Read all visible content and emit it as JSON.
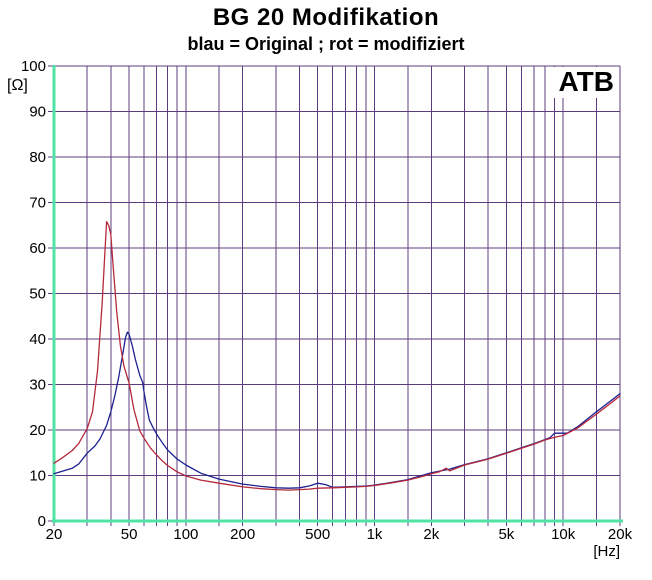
{
  "header": {
    "title": "BG 20 Modifikation",
    "subtitle": "blau = Original ; rot = modifiziert"
  },
  "watermark": {
    "label": "ATB"
  },
  "colors": {
    "grid": "#5c3c80",
    "axis": "#4fe3a4",
    "original_blue": "#1e2190",
    "modified_red": "#b4293b",
    "text": "#000000",
    "background": "#ffffff"
  },
  "chart_data": {
    "type": "line",
    "title": "BG 20 Modifikation",
    "subtitle": "blau = Original ; rot = modifiziert",
    "x_axis": {
      "unit_label": "[Hz]",
      "scale": "log",
      "min": 20,
      "max": 20000,
      "gridlines": [
        20,
        30,
        40,
        50,
        60,
        70,
        80,
        90,
        100,
        150,
        200,
        300,
        400,
        500,
        600,
        700,
        800,
        900,
        1000,
        1500,
        2000,
        3000,
        4000,
        5000,
        6000,
        7000,
        8000,
        9000,
        10000,
        15000,
        20000
      ],
      "tick_labels": [
        {
          "value": 20,
          "label": "20"
        },
        {
          "value": 50,
          "label": "50"
        },
        {
          "value": 100,
          "label": "100"
        },
        {
          "value": 200,
          "label": "200"
        },
        {
          "value": 500,
          "label": "500"
        },
        {
          "value": 1000,
          "label": "1k"
        },
        {
          "value": 2000,
          "label": "2k"
        },
        {
          "value": 5000,
          "label": "5k"
        },
        {
          "value": 10000,
          "label": "10k"
        },
        {
          "value": 20000,
          "label": "20k"
        }
      ]
    },
    "y_axis": {
      "unit_label": "[Ω]",
      "scale": "linear",
      "min": 0,
      "max": 100,
      "tick_step": 10,
      "tick_labels": [
        {
          "value": 100,
          "label": "100"
        },
        {
          "value": 90,
          "label": "90"
        },
        {
          "value": 80,
          "label": "80"
        },
        {
          "value": 70,
          "label": "70"
        },
        {
          "value": 60,
          "label": "60"
        },
        {
          "value": 50,
          "label": "50"
        },
        {
          "value": 40,
          "label": "40"
        },
        {
          "value": 30,
          "label": "30"
        },
        {
          "value": 20,
          "label": "20"
        },
        {
          "value": 10,
          "label": "10"
        },
        {
          "value": 0,
          "label": "0"
        }
      ]
    },
    "legend": {
      "position": "subtitle",
      "entries": [
        "blau = Original",
        "rot = modifiziert"
      ]
    },
    "grid": true,
    "series": [
      {
        "name": "Original",
        "key": "original",
        "color": "#1e2190",
        "points": [
          [
            20,
            10.4
          ],
          [
            22,
            10.9
          ],
          [
            25,
            11.6
          ],
          [
            27,
            12.5
          ],
          [
            30,
            14.9
          ],
          [
            33,
            16.5
          ],
          [
            35,
            18.0
          ],
          [
            38,
            21.0
          ],
          [
            40,
            24.0
          ],
          [
            42,
            27.5
          ],
          [
            44,
            31.5
          ],
          [
            46,
            36.0
          ],
          [
            48,
            40.5
          ],
          [
            49,
            41.5
          ],
          [
            50,
            41.0
          ],
          [
            52,
            38.5
          ],
          [
            54,
            35.5
          ],
          [
            57,
            32.0
          ],
          [
            59,
            30.5
          ],
          [
            60,
            28.4
          ],
          [
            62,
            25.0
          ],
          [
            64,
            22.2
          ],
          [
            67,
            20.5
          ],
          [
            70,
            19.1
          ],
          [
            75,
            17.2
          ],
          [
            80,
            15.6
          ],
          [
            90,
            13.6
          ],
          [
            100,
            12.3
          ],
          [
            120,
            10.5
          ],
          [
            150,
            9.2
          ],
          [
            200,
            8.1
          ],
          [
            250,
            7.6
          ],
          [
            300,
            7.3
          ],
          [
            350,
            7.2
          ],
          [
            400,
            7.3
          ],
          [
            450,
            7.7
          ],
          [
            500,
            8.3
          ],
          [
            550,
            8.0
          ],
          [
            600,
            7.4
          ],
          [
            700,
            7.5
          ],
          [
            800,
            7.6
          ],
          [
            900,
            7.7
          ],
          [
            1000,
            7.9
          ],
          [
            1200,
            8.4
          ],
          [
            1500,
            9.1
          ],
          [
            2000,
            10.6
          ],
          [
            2500,
            11.4
          ],
          [
            3000,
            12.4
          ],
          [
            4000,
            13.7
          ],
          [
            5000,
            15.0
          ],
          [
            6000,
            16.1
          ],
          [
            7000,
            17.0
          ],
          [
            8000,
            17.9
          ],
          [
            8500,
            18.3
          ],
          [
            9000,
            19.3
          ],
          [
            10000,
            19.3
          ],
          [
            10500,
            19.3
          ],
          [
            12000,
            20.8
          ],
          [
            15000,
            24.0
          ],
          [
            18000,
            26.5
          ],
          [
            20000,
            28.0
          ]
        ]
      },
      {
        "name": "modifiziert",
        "key": "modifiziert",
        "color": "#b4293b",
        "points": [
          [
            20,
            12.7
          ],
          [
            22,
            13.8
          ],
          [
            25,
            15.5
          ],
          [
            27,
            17.0
          ],
          [
            30,
            20.3
          ],
          [
            32,
            24.0
          ],
          [
            34,
            33.0
          ],
          [
            36,
            48.0
          ],
          [
            37,
            57.0
          ],
          [
            38,
            65.8
          ],
          [
            39,
            65.0
          ],
          [
            40,
            63.0
          ],
          [
            41,
            57.0
          ],
          [
            43,
            46.0
          ],
          [
            45,
            38.5
          ],
          [
            47,
            34.0
          ],
          [
            50,
            30.3
          ],
          [
            53,
            24.5
          ],
          [
            57,
            19.8
          ],
          [
            60,
            18.2
          ],
          [
            65,
            16.0
          ],
          [
            70,
            14.5
          ],
          [
            75,
            13.2
          ],
          [
            80,
            12.2
          ],
          [
            90,
            10.8
          ],
          [
            100,
            9.9
          ],
          [
            120,
            9.0
          ],
          [
            150,
            8.3
          ],
          [
            200,
            7.5
          ],
          [
            250,
            7.1
          ],
          [
            300,
            6.9
          ],
          [
            350,
            6.8
          ],
          [
            400,
            6.9
          ],
          [
            450,
            7.0
          ],
          [
            500,
            7.2
          ],
          [
            600,
            7.3
          ],
          [
            700,
            7.4
          ],
          [
            800,
            7.5
          ],
          [
            900,
            7.6
          ],
          [
            1000,
            7.8
          ],
          [
            1200,
            8.3
          ],
          [
            1500,
            9.0
          ],
          [
            1800,
            9.8
          ],
          [
            2000,
            10.4
          ],
          [
            2200,
            10.8
          ],
          [
            2400,
            11.6
          ],
          [
            2500,
            11.0
          ],
          [
            3000,
            12.3
          ],
          [
            3500,
            13.0
          ],
          [
            4000,
            13.6
          ],
          [
            5000,
            14.9
          ],
          [
            6000,
            16.0
          ],
          [
            7000,
            16.9
          ],
          [
            8000,
            17.8
          ],
          [
            9000,
            18.4
          ],
          [
            10000,
            18.8
          ],
          [
            12000,
            20.5
          ],
          [
            15000,
            23.5
          ],
          [
            18000,
            26.0
          ],
          [
            20000,
            27.5
          ]
        ]
      }
    ]
  }
}
